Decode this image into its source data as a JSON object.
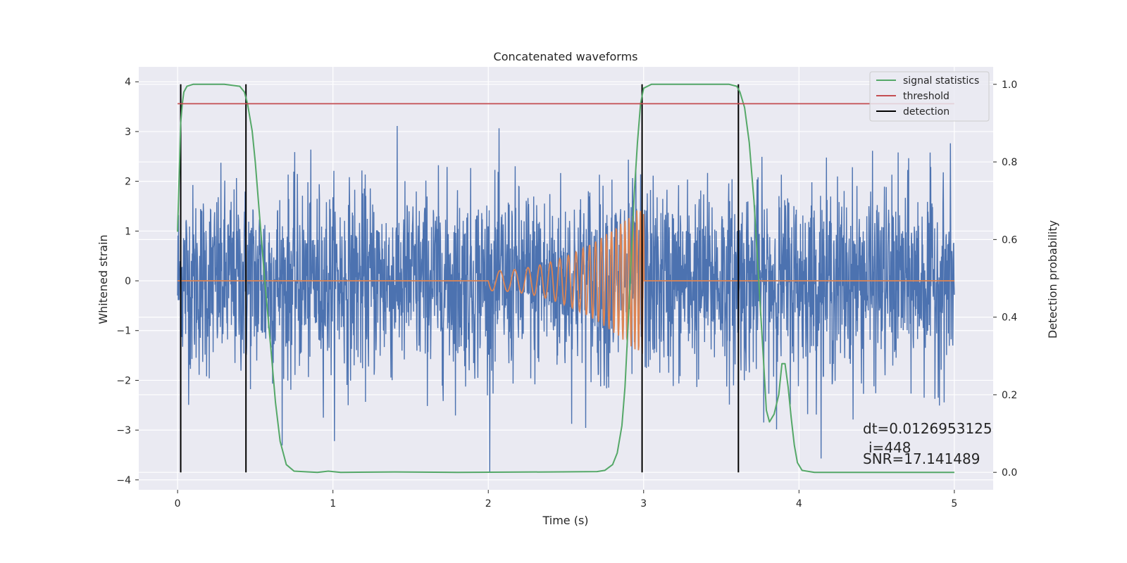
{
  "chart_data": {
    "type": "line",
    "title": "Concatenated waveforms",
    "xlabel": "Time (s)",
    "ylabel_left": "Whitened strain",
    "ylabel_right": "Detection probability",
    "xlim": [
      -0.25,
      5.25
    ],
    "ylim_left": [
      -4.2,
      4.3
    ],
    "ylim_right": [
      -0.045,
      1.045
    ],
    "x_ticks": [
      0,
      1,
      2,
      3,
      4,
      5
    ],
    "x_tick_labels": [
      "0",
      "1",
      "2",
      "3",
      "4",
      "5"
    ],
    "y_left_ticks": [
      -4,
      -3,
      -2,
      -1,
      0,
      1,
      2,
      3,
      4
    ],
    "y_left_tick_labels": [
      "−4",
      "−3",
      "−2",
      "−1",
      "0",
      "1",
      "2",
      "3",
      "4"
    ],
    "y_right_ticks": [
      0.0,
      0.2,
      0.4,
      0.6,
      0.8,
      1.0
    ],
    "y_right_tick_labels": [
      "0.0",
      "0.2",
      "0.4",
      "0.6",
      "0.8",
      "1.0"
    ],
    "grid": true,
    "legend_position": "top-right",
    "colors": {
      "strain": "#4c72b0",
      "template": "#dd8452",
      "signal_statistics": "#55a868",
      "threshold": "#c44e52",
      "detection": "#000000",
      "axes_background": "#eaeaf2",
      "grid": "#ffffff"
    },
    "series": [
      {
        "id": "strain",
        "axis": "left",
        "description_key": "noise",
        "t_range": [
          0,
          5
        ],
        "typical_amplitude": 1.0,
        "max_abs": 3.9
      },
      {
        "id": "template",
        "axis": "left",
        "t_start": 2.0,
        "t_merge": 3.0,
        "amp_start": 0.2,
        "amp_merge": 1.55,
        "f_start": 10,
        "f_merge": 45
      },
      {
        "id": "signal_statistics",
        "name": "signal statistics",
        "axis": "right",
        "points": [
          [
            0.0,
            0.62
          ],
          [
            0.01,
            0.76
          ],
          [
            0.02,
            0.9
          ],
          [
            0.03,
            0.95
          ],
          [
            0.04,
            0.98
          ],
          [
            0.06,
            0.995
          ],
          [
            0.1,
            1.0
          ],
          [
            0.2,
            1.0
          ],
          [
            0.3,
            1.0
          ],
          [
            0.4,
            0.995
          ],
          [
            0.43,
            0.98
          ],
          [
            0.45,
            0.95
          ],
          [
            0.48,
            0.88
          ],
          [
            0.5,
            0.8
          ],
          [
            0.53,
            0.65
          ],
          [
            0.56,
            0.5
          ],
          [
            0.6,
            0.32
          ],
          [
            0.63,
            0.18
          ],
          [
            0.66,
            0.08
          ],
          [
            0.7,
            0.02
          ],
          [
            0.75,
            0.003
          ],
          [
            0.9,
            0.0
          ],
          [
            0.97,
            0.003
          ],
          [
            1.05,
            0.0
          ],
          [
            1.4,
            0.001
          ],
          [
            1.8,
            0.0
          ],
          [
            2.4,
            0.001
          ],
          [
            2.7,
            0.002
          ],
          [
            2.75,
            0.005
          ],
          [
            2.8,
            0.02
          ],
          [
            2.83,
            0.05
          ],
          [
            2.86,
            0.12
          ],
          [
            2.88,
            0.22
          ],
          [
            2.9,
            0.38
          ],
          [
            2.92,
            0.55
          ],
          [
            2.94,
            0.72
          ],
          [
            2.96,
            0.85
          ],
          [
            2.98,
            0.95
          ],
          [
            3.0,
            0.99
          ],
          [
            3.05,
            1.0
          ],
          [
            3.3,
            1.0
          ],
          [
            3.55,
            1.0
          ],
          [
            3.6,
            0.995
          ],
          [
            3.62,
            0.98
          ],
          [
            3.65,
            0.94
          ],
          [
            3.68,
            0.85
          ],
          [
            3.71,
            0.7
          ],
          [
            3.74,
            0.5
          ],
          [
            3.77,
            0.3
          ],
          [
            3.79,
            0.16
          ],
          [
            3.81,
            0.13
          ],
          [
            3.84,
            0.15
          ],
          [
            3.87,
            0.2
          ],
          [
            3.89,
            0.28
          ],
          [
            3.91,
            0.28
          ],
          [
            3.93,
            0.22
          ],
          [
            3.95,
            0.14
          ],
          [
            3.97,
            0.07
          ],
          [
            3.99,
            0.025
          ],
          [
            4.02,
            0.005
          ],
          [
            4.1,
            0.0
          ],
          [
            5.0,
            0.0
          ]
        ]
      },
      {
        "id": "threshold",
        "name": "threshold",
        "axis": "right",
        "value": 0.95,
        "t_range": [
          0,
          5
        ]
      },
      {
        "id": "detection",
        "name": "detection",
        "axis": "right",
        "times": [
          0.02,
          0.44,
          2.99,
          3.61
        ],
        "y_range": [
          0.0,
          1.0
        ]
      }
    ],
    "legend": [
      {
        "label": "signal statistics",
        "series": "signal_statistics"
      },
      {
        "label": "threshold",
        "series": "threshold"
      },
      {
        "label": "detection",
        "series": "detection"
      }
    ],
    "annotations": {
      "dt": "dt=0.0126953125",
      "i": "i=448",
      "snr": "SNR=17.141489"
    }
  }
}
